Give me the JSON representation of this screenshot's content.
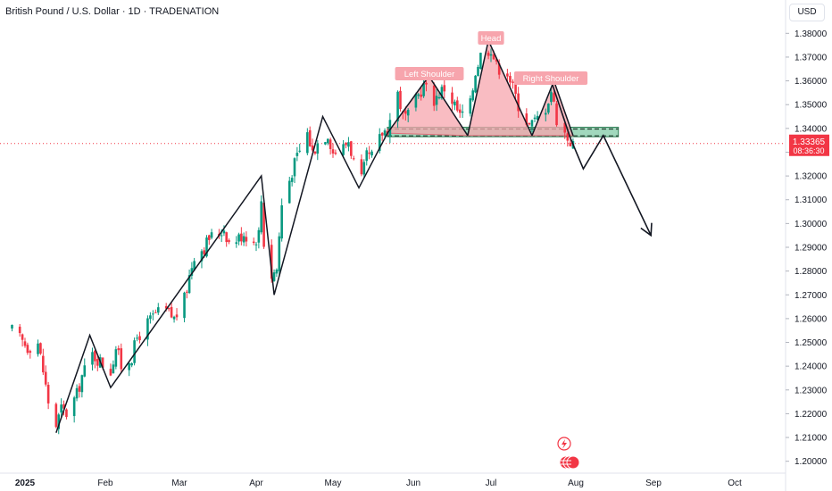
{
  "chart_data": {
    "type": "candlestick",
    "title": "British Pound / U.S. Dollar · 1D · TRADENATION",
    "currency": "USD",
    "ylim": [
      1.195,
      1.385
    ],
    "y_ticks": [
      "1.38000",
      "1.37000",
      "1.36000",
      "1.35000",
      "1.34000",
      "1.33000",
      "1.32000",
      "1.31000",
      "1.30000",
      "1.29000",
      "1.28000",
      "1.27000",
      "1.26000",
      "1.25000",
      "1.24000",
      "1.23000",
      "1.22000",
      "1.21000",
      "1.20000"
    ],
    "y_top_partial": "1.38000",
    "x_labels": [
      {
        "label": "2025",
        "date": "2025-01-01"
      },
      {
        "label": "Feb",
        "date": "2025-02-01"
      },
      {
        "label": "Mar",
        "date": "2025-03-01"
      },
      {
        "label": "Apr",
        "date": "2025-04-01"
      },
      {
        "label": "May",
        "date": "2025-05-01"
      },
      {
        "label": "Jun",
        "date": "2025-06-01"
      },
      {
        "label": "Jul",
        "date": "2025-07-01"
      },
      {
        "label": "Aug",
        "date": "2025-08-01"
      },
      {
        "label": "Sep",
        "date": "2025-09-01"
      },
      {
        "label": "Oct",
        "date": "2025-10-01"
      }
    ],
    "last_price": "1.33365",
    "countdown": "08:36:30",
    "colors": {
      "up": "#089981",
      "down": "#f23645",
      "line": "#131722",
      "pattern": "#f7a5ad",
      "zone": "#6fc39a",
      "label_bg": "#f7a5ad"
    },
    "close_path": [
      [
        "2024-12-27",
        1.255
      ],
      [
        "2025-01-02",
        1.248
      ],
      [
        "2025-01-06",
        1.25
      ],
      [
        "2025-01-08",
        1.238
      ],
      [
        "2025-01-10",
        1.225
      ],
      [
        "2025-01-13",
        1.215
      ],
      [
        "2025-01-15",
        1.222
      ],
      [
        "2025-01-17",
        1.22
      ],
      [
        "2025-01-21",
        1.228
      ],
      [
        "2025-01-23",
        1.236
      ],
      [
        "2025-01-27",
        1.245
      ],
      [
        "2025-01-30",
        1.242
      ],
      [
        "2025-02-03",
        1.238
      ],
      [
        "2025-02-05",
        1.248
      ],
      [
        "2025-02-07",
        1.24
      ],
      [
        "2025-02-11",
        1.244
      ],
      [
        "2025-02-13",
        1.252
      ],
      [
        "2025-02-17",
        1.258
      ],
      [
        "2025-02-20",
        1.262
      ],
      [
        "2025-02-24",
        1.263
      ],
      [
        "2025-02-27",
        1.26
      ],
      [
        "2025-03-03",
        1.268
      ],
      [
        "2025-03-05",
        1.278
      ],
      [
        "2025-03-07",
        1.287
      ],
      [
        "2025-03-11",
        1.29
      ],
      [
        "2025-03-13",
        1.294
      ],
      [
        "2025-03-17",
        1.296
      ],
      [
        "2025-03-19",
        1.298
      ],
      [
        "2025-03-21",
        1.292
      ],
      [
        "2025-03-25",
        1.294
      ],
      [
        "2025-03-27",
        1.296
      ],
      [
        "2025-03-31",
        1.292
      ],
      [
        "2025-04-02",
        1.296
      ],
      [
        "2025-04-03",
        1.31
      ],
      [
        "2025-04-04",
        1.292
      ],
      [
        "2025-04-07",
        1.278
      ],
      [
        "2025-04-09",
        1.281
      ],
      [
        "2025-04-11",
        1.308
      ],
      [
        "2025-04-15",
        1.322
      ],
      [
        "2025-04-17",
        1.328
      ],
      [
        "2025-04-21",
        1.338
      ],
      [
        "2025-04-23",
        1.33
      ],
      [
        "2025-04-25",
        1.334
      ],
      [
        "2025-04-29",
        1.338
      ],
      [
        "2025-05-01",
        1.33
      ],
      [
        "2025-05-05",
        1.332
      ],
      [
        "2025-05-07",
        1.335
      ],
      [
        "2025-05-09",
        1.326
      ],
      [
        "2025-05-12",
        1.318
      ],
      [
        "2025-05-14",
        1.328
      ],
      [
        "2025-05-16",
        1.328
      ],
      [
        "2025-05-20",
        1.338
      ],
      [
        "2025-05-22",
        1.34
      ],
      [
        "2025-05-26",
        1.355
      ],
      [
        "2025-05-28",
        1.345
      ],
      [
        "2025-05-30",
        1.345
      ],
      [
        "2025-06-03",
        1.354
      ],
      [
        "2025-06-05",
        1.358
      ],
      [
        "2025-06-09",
        1.352
      ],
      [
        "2025-06-11",
        1.355
      ],
      [
        "2025-06-13",
        1.357
      ],
      [
        "2025-06-17",
        1.35
      ],
      [
        "2025-06-19",
        1.345
      ],
      [
        "2025-06-23",
        1.35
      ],
      [
        "2025-06-25",
        1.364
      ],
      [
        "2025-06-27",
        1.371
      ],
      [
        "2025-07-01",
        1.374
      ],
      [
        "2025-07-03",
        1.366
      ],
      [
        "2025-07-07",
        1.364
      ],
      [
        "2025-07-09",
        1.357
      ],
      [
        "2025-07-11",
        1.35
      ],
      [
        "2025-07-15",
        1.341
      ],
      [
        "2025-07-17",
        1.343
      ],
      [
        "2025-07-21",
        1.349
      ],
      [
        "2025-07-23",
        1.356
      ],
      [
        "2025-07-25",
        1.344
      ],
      [
        "2025-07-29",
        1.336
      ],
      [
        "2025-07-31",
        1.333
      ]
    ],
    "zigzag": [
      [
        "2025-01-13",
        1.212
      ],
      [
        "2025-01-26",
        1.253
      ],
      [
        "2025-02-03",
        1.231
      ],
      [
        "2025-04-03",
        1.32
      ],
      [
        "2025-04-08",
        1.27
      ],
      [
        "2025-04-27",
        1.345
      ],
      [
        "2025-05-11",
        1.315
      ],
      [
        "2025-05-22",
        1.338
      ]
    ],
    "forecast": [
      [
        "2025-07-23",
        1.36
      ],
      [
        "2025-07-30",
        1.336
      ],
      [
        "2025-08-04",
        1.323
      ],
      [
        "2025-08-12",
        1.337
      ],
      [
        "2025-08-31",
        1.295
      ]
    ],
    "head_shoulders": {
      "left_shoulder": {
        "label": "Left Shoulder",
        "points": [
          [
            "2025-05-22",
            1.338
          ],
          [
            "2025-06-07",
            1.362
          ],
          [
            "2025-06-22",
            1.337
          ]
        ]
      },
      "head": {
        "label": "Head",
        "points": [
          [
            "2025-06-22",
            1.337
          ],
          [
            "2025-06-30",
            1.377
          ],
          [
            "2025-07-16",
            1.337
          ]
        ]
      },
      "right_shoulder": {
        "label": "Right Shoulder",
        "points": [
          [
            "2025-07-16",
            1.337
          ],
          [
            "2025-07-24",
            1.36
          ],
          [
            "2025-07-31",
            1.337
          ]
        ]
      }
    },
    "neckline_zone": {
      "from": "2025-05-22",
      "to": "2025-08-18",
      "top": 1.3405,
      "bottom": 1.3365
    }
  }
}
